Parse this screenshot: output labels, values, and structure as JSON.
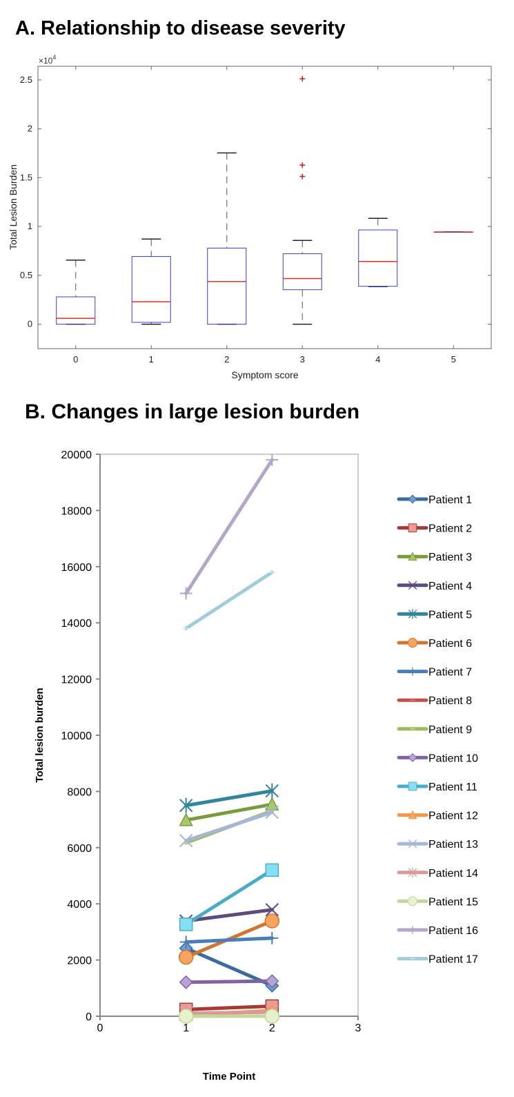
{
  "chart_data": [
    {
      "type": "box",
      "title": "A. Relationship to disease severity",
      "xlabel": "Symptom score",
      "ylabel": "Total Lesion Burden",
      "y_multiplier_label": "×10",
      "y_multiplier_exp": "4",
      "categories": [
        "0",
        "1",
        "2",
        "3",
        "4",
        "5"
      ],
      "yticks": [
        0,
        5000,
        10000,
        15000,
        20000,
        25000
      ],
      "ytick_labels": [
        "0",
        "0.5",
        "1",
        "1.5",
        "2",
        "2.5"
      ],
      "ylim": [
        -2500,
        26400
      ],
      "xlim": [
        -0.5,
        5.5
      ],
      "boxes": [
        {
          "min": 0,
          "q1": 0,
          "median": 600,
          "q3": 2800,
          "max": 6560,
          "outliers": []
        },
        {
          "min": 0,
          "q1": 190,
          "median": 2300,
          "q3": 6930,
          "max": 8720,
          "outliers": []
        },
        {
          "min": 0,
          "q1": 0,
          "median": 4370,
          "q3": 7790,
          "max": 17530,
          "outliers": []
        },
        {
          "min": 0,
          "q1": 3530,
          "median": 4670,
          "q3": 7210,
          "max": 8580,
          "outliers": [
            25120,
            16280,
            15120
          ]
        },
        {
          "min": 3850,
          "q1": 3880,
          "median": 6420,
          "q3": 9650,
          "max": 10840,
          "outliers": []
        },
        {
          "min": 9440,
          "q1": 9440,
          "median": 9440,
          "q3": 9440,
          "max": 9440,
          "outliers": []
        }
      ],
      "colors": {
        "box": "#3b3bd0",
        "median": "#e03020",
        "whisker": "#555555",
        "outlier": "#d02010"
      }
    },
    {
      "type": "line",
      "title": "B. Changes in large lesion burden",
      "xlabel": "Time Point",
      "ylabel": "Total lesion burden",
      "xlim": [
        0,
        3
      ],
      "ylim": [
        0,
        20000
      ],
      "xticks": [
        "0",
        "1",
        "2",
        "3"
      ],
      "yticks": [
        "0",
        "2000",
        "4000",
        "6000",
        "8000",
        "10000",
        "12000",
        "14000",
        "16000",
        "18000",
        "20000"
      ],
      "grid": false,
      "legend": "right",
      "x": [
        1,
        2
      ],
      "series": [
        {
          "name": "Patient 1",
          "values": [
            2420,
            1090
          ],
          "color": "#3a6aa0",
          "fill": "#6b9bd2",
          "marker": "diamond"
        },
        {
          "name": "Patient 2",
          "values": [
            240,
            360
          ],
          "color": "#a83a36",
          "fill": "#ec9a96",
          "marker": "square"
        },
        {
          "name": "Patient 3",
          "values": [
            6980,
            7540
          ],
          "color": "#7b9a3e",
          "fill": "#a9c86a",
          "marker": "triangle"
        },
        {
          "name": "Patient 4",
          "values": [
            3390,
            3790
          ],
          "color": "#5d4a7e",
          "fill": "#5d4a7e",
          "marker": "x"
        },
        {
          "name": "Patient 5",
          "values": [
            7500,
            8020
          ],
          "color": "#31859c",
          "fill": "#31859c",
          "marker": "star"
        },
        {
          "name": "Patient 6",
          "values": [
            2100,
            3390
          ],
          "color": "#d2752f",
          "fill": "#f6a460",
          "marker": "circle"
        },
        {
          "name": "Patient 7",
          "values": [
            2640,
            2780
          ],
          "color": "#4a7ebb",
          "fill": "#4a7ebb",
          "marker": "plus"
        },
        {
          "name": "Patient 8",
          "values": [
            100,
            150
          ],
          "color": "#c0504d",
          "fill": "#e8908d",
          "marker": "dash"
        },
        {
          "name": "Patient 9",
          "values": [
            6170,
            7310
          ],
          "color": "#9bbb59",
          "fill": "#d6e6b0",
          "marker": "dash"
        },
        {
          "name": "Patient 10",
          "values": [
            1210,
            1250
          ],
          "color": "#8064a2",
          "fill": "#b8a2d8",
          "marker": "diamond"
        },
        {
          "name": "Patient 11",
          "values": [
            3270,
            5200
          ],
          "color": "#4bacc6",
          "fill": "#86e0f4",
          "marker": "square"
        },
        {
          "name": "Patient 12",
          "values": [
            50,
            200
          ],
          "color": "#f79646",
          "fill": "#f8a860",
          "marker": "triangle"
        },
        {
          "name": "Patient 13",
          "values": [
            6250,
            7260
          ],
          "color": "#a5b6d6",
          "fill": "#a5b6d6",
          "marker": "x"
        },
        {
          "name": "Patient 14",
          "values": [
            100,
            150
          ],
          "color": "#d99a98",
          "fill": "#d99a98",
          "marker": "star"
        },
        {
          "name": "Patient 15",
          "values": [
            0,
            0
          ],
          "color": "#c3d69b",
          "fill": "#e6f2cc",
          "marker": "circle"
        },
        {
          "name": "Patient 16",
          "values": [
            15050,
            19800
          ],
          "color": "#b3a6c8",
          "fill": "#b3a6c8",
          "marker": "plus"
        },
        {
          "name": "Patient 17",
          "values": [
            13800,
            15800
          ],
          "color": "#a0ccdc",
          "fill": "#d8eef5",
          "marker": "dash"
        }
      ]
    }
  ]
}
